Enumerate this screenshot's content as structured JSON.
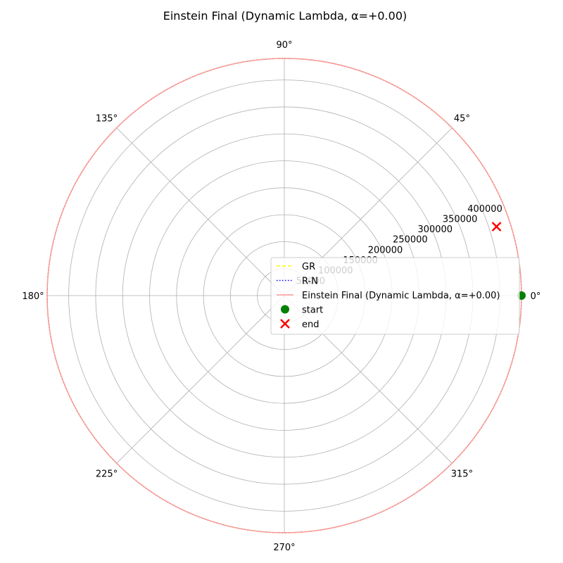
{
  "chart_data": {
    "type": "polar-line",
    "title": "Einstein Final (Dynamic Lambda, α=+0.00)",
    "r_max": 440000,
    "r_ticks": [
      50000,
      100000,
      150000,
      200000,
      250000,
      300000,
      350000,
      400000
    ],
    "r_tick_labels": [
      "50000",
      "100000",
      "150000",
      "200000",
      "250000",
      "300000",
      "350000",
      "400000"
    ],
    "r_label_angle_deg": 22.5,
    "theta_ticks_deg": [
      0,
      45,
      90,
      135,
      180,
      225,
      270,
      315
    ],
    "theta_tick_labels": [
      "0°",
      "45°",
      "90°",
      "135°",
      "180°",
      "225°",
      "270°",
      "315°"
    ],
    "grid": true,
    "series": [
      {
        "name": "GR",
        "color": "#ffff00",
        "style": "dashed",
        "r": 440000,
        "theta_start_deg": 0,
        "theta_end_deg": 360
      },
      {
        "name": "R-N",
        "color": "#0000ff",
        "style": "dotted",
        "r": 440000,
        "theta_start_deg": 0,
        "theta_end_deg": 360
      },
      {
        "name": "Einstein Final (Dynamic Lambda, α=+0.00)",
        "color": "#ff9999",
        "style": "solid",
        "r": 440000,
        "theta_start_deg": 0,
        "theta_end_deg": 360
      }
    ],
    "markers": {
      "start": {
        "label": "start",
        "r": 440000,
        "theta_deg": 0,
        "color": "#008000",
        "shape": "circle"
      },
      "end": {
        "label": "end",
        "r": 414000,
        "theta_deg": 18,
        "color": "#ff0000",
        "shape": "x"
      }
    },
    "legend": {
      "placement": "center",
      "entries": [
        {
          "label": "GR",
          "color": "#ffff00",
          "kind": "dashed"
        },
        {
          "label": "R-N",
          "color": "#0000ff",
          "kind": "dotted"
        },
        {
          "label": "Einstein Final (Dynamic Lambda, α=+0.00)",
          "color": "#ff9999",
          "kind": "solid"
        },
        {
          "label": "start",
          "color": "#008000",
          "kind": "circle"
        },
        {
          "label": "end",
          "color": "#ff0000",
          "kind": "x"
        }
      ]
    }
  }
}
